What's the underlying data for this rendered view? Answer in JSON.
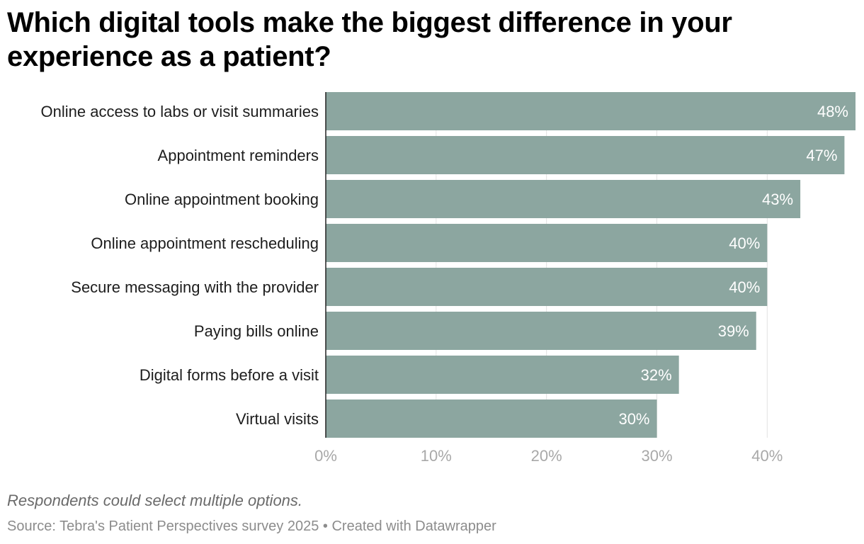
{
  "chart_data": {
    "type": "bar",
    "orientation": "horizontal",
    "title": "Which digital tools make the biggest difference in your experience as a patient?",
    "categories": [
      "Online access to labs or visit summaries",
      "Appointment reminders",
      "Online appointment booking",
      "Online appointment rescheduling",
      "Secure messaging with the provider",
      "Paying bills online",
      "Digital forms before a visit",
      "Virtual visits"
    ],
    "values": [
      48,
      47,
      43,
      40,
      40,
      39,
      32,
      30
    ],
    "value_labels": [
      "48%",
      "47%",
      "43%",
      "40%",
      "40%",
      "39%",
      "32%",
      "30%"
    ],
    "xlim": [
      0,
      48
    ],
    "x_ticks": [
      0,
      10,
      20,
      30,
      40
    ],
    "x_tick_labels": [
      "0%",
      "10%",
      "20%",
      "30%",
      "40%"
    ],
    "grid": true,
    "bar_color": "#8ca6a0"
  },
  "notes": "Respondents could select multiple options.",
  "source": "Source: Tebra's Patient Perspectives survey 2025 • Created with Datawrapper"
}
